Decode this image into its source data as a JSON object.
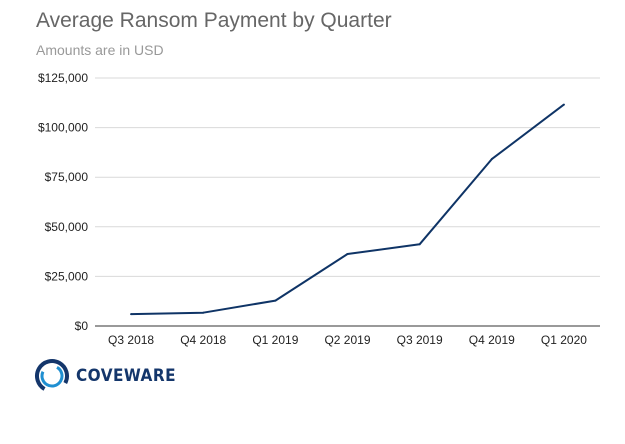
{
  "chart_data": {
    "type": "line",
    "title": "Average Ransom Payment by Quarter",
    "subtitle": "Amounts are in USD",
    "categories": [
      "Q3 2018",
      "Q4 2018",
      "Q1 2019",
      "Q2 2019",
      "Q3 2019",
      "Q4 2019",
      "Q1 2020"
    ],
    "series": [
      {
        "values": [
          6000,
          6700,
          12800,
          36300,
          41200,
          84100,
          111600
        ]
      }
    ],
    "yticks": [
      "$0",
      "$25,000",
      "$50,000",
      "$75,000",
      "$100,000",
      "$125,000"
    ],
    "ylim": [
      0,
      125000
    ],
    "grid": true,
    "legend": "none",
    "colors": {
      "line": "#0f3466",
      "grid": "#d9d9d9",
      "axis": "#333333"
    }
  },
  "brand": {
    "name": "COVEWARE",
    "colors": {
      "dark": "#14366b",
      "light": "#1f8fd1"
    }
  }
}
